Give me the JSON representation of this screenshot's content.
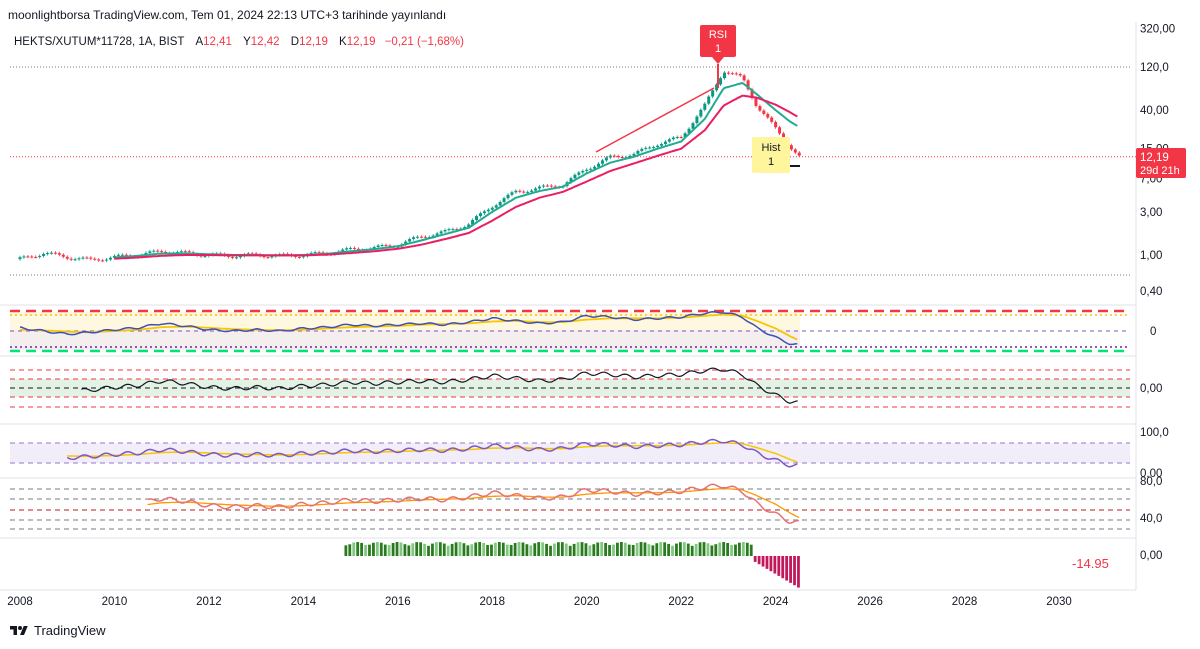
{
  "header": {
    "publisher": "moonlightborsa TradingView.com, Tem 01, 2024 22:13 UTC+3 tarihinde yayınlandı"
  },
  "legend": {
    "symbol": "HEKTS/XUTUM*11728, 1A, BIST",
    "open_label": "A",
    "open_value": "12,41",
    "high_label": "Y",
    "high_value": "12,42",
    "low_label": "D",
    "low_value": "12,19",
    "close_label": "K",
    "close_value": "12,19",
    "change": "−0,21 (−1,68%)"
  },
  "footer": {
    "brand": "TradingView"
  },
  "colors": {
    "up": "#089981",
    "down": "#f23645",
    "ema_fast": "#22ab94",
    "ema_slow": "#e91e63",
    "rsi_line": "#7e57c2",
    "signal": "#f7c600",
    "hist_up": "#2a7b1e",
    "hist_down": "#c2185b"
  },
  "annotations": {
    "rsi_label_1": "RSI",
    "rsi_label_2": "1",
    "hist_label_1": "Hist",
    "hist_label_2": "1"
  },
  "price_badge": {
    "value": "12,19",
    "countdown": "29d 21h"
  },
  "chart_data": {
    "type": "candlestick",
    "x_range": [
      2008,
      2031.5
    ],
    "x_ticks": [
      "2008",
      "2010",
      "2012",
      "2014",
      "2016",
      "2018",
      "2020",
      "2022",
      "2024",
      "2026",
      "2028",
      "2030"
    ],
    "x_tick_years": [
      2008,
      2010,
      2012,
      2014,
      2016,
      2018,
      2020,
      2022,
      2024,
      2026,
      2028,
      2030
    ],
    "y_scale": "log",
    "y_ticks": [
      "320,00",
      "120,0",
      "40,00",
      "15,00",
      "7,00",
      "3,00",
      "1,00",
      "0,40"
    ],
    "y_tick_values": [
      320,
      120,
      40,
      15,
      7,
      3,
      1,
      0.4
    ],
    "price_series": {
      "years": [
        2008.0,
        2008.5,
        2009.0,
        2009.5,
        2010.0,
        2010.5,
        2011.0,
        2011.5,
        2012.0,
        2012.5,
        2013.0,
        2013.5,
        2014.0,
        2014.5,
        2015.0,
        2015.5,
        2016.0,
        2016.5,
        2017.0,
        2017.5,
        2018.0,
        2018.5,
        2019.0,
        2019.5,
        2020.0,
        2020.5,
        2021.0,
        2021.5,
        2022.0,
        2022.5,
        2022.9,
        2023.3,
        2023.6,
        2024.0,
        2024.3,
        2024.5
      ],
      "close": [
        0.9,
        1.05,
        0.95,
        0.88,
        0.95,
        1.0,
        1.1,
        1.05,
        1.0,
        0.98,
        1.0,
        0.98,
        1.0,
        1.05,
        1.15,
        1.2,
        1.3,
        1.6,
        1.8,
        2.2,
        3.5,
        5.0,
        5.5,
        6.0,
        9.0,
        12.0,
        13.0,
        17.0,
        20.0,
        45.0,
        110.0,
        90.0,
        45.0,
        25.0,
        16.0,
        12.19
      ]
    },
    "ema_fast": [
      0.95,
      1.0,
      0.97,
      0.92,
      0.94,
      0.98,
      1.04,
      1.04,
      1.02,
      1.0,
      1.0,
      0.99,
      1.0,
      1.03,
      1.1,
      1.16,
      1.25,
      1.45,
      1.7,
      2.0,
      3.0,
      4.3,
      5.1,
      5.7,
      8.0,
      10.5,
      12.2,
      15.0,
      18.0,
      32.0,
      70.0,
      80.0,
      60.0,
      40.0,
      30.0,
      26.0
    ],
    "ema_slow": [
      0.9,
      0.94,
      0.93,
      0.9,
      0.91,
      0.94,
      0.98,
      1.0,
      1.0,
      0.99,
      0.99,
      0.99,
      0.99,
      1.01,
      1.05,
      1.1,
      1.17,
      1.3,
      1.5,
      1.75,
      2.4,
      3.4,
      4.3,
      5.0,
      6.5,
      8.5,
      10.3,
      12.5,
      15.0,
      24.0,
      45.0,
      58.0,
      55.0,
      46.0,
      38.0,
      33.0
    ],
    "last_price": 12.19,
    "indicators": {
      "pane1_label": "0",
      "pane2_label": "0,00",
      "pane3_labels": [
        "100,0",
        "0,00"
      ],
      "pane4_labels": [
        "80,0",
        "40,0"
      ],
      "pane5_labels": [
        "0,00"
      ],
      "pane5_value": "-14.95",
      "rsi_values": [
        55,
        50,
        45,
        48,
        52,
        55,
        62,
        58,
        52,
        50,
        52,
        50,
        54,
        56,
        60,
        58,
        60,
        62,
        60,
        64,
        70,
        66,
        62,
        64,
        74,
        72,
        68,
        70,
        72,
        78,
        80,
        72,
        55,
        40,
        30,
        28
      ],
      "signal_values": [
        52,
        51,
        49,
        48,
        50,
        52,
        56,
        57,
        55,
        53,
        52,
        51,
        52,
        54,
        56,
        57,
        58,
        60,
        61,
        62,
        65,
        66,
        64,
        64,
        68,
        70,
        70,
        70,
        71,
        74,
        76,
        74,
        66,
        54,
        42,
        35
      ]
    }
  }
}
